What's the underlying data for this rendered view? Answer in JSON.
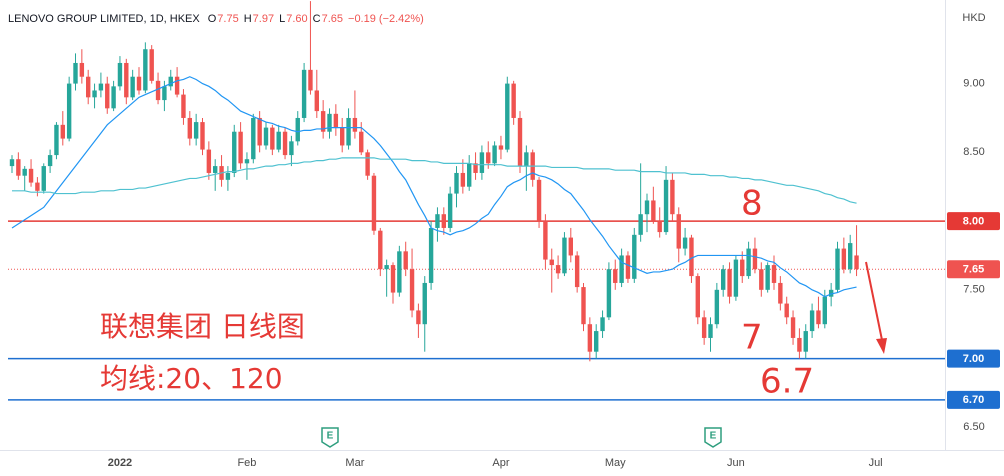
{
  "chart_data": {
    "type": "candlestick",
    "title": "LENOVO GROUP LIMITED, 1D, HKEX",
    "quote": [
      {
        "key": "O",
        "value": "7.75"
      },
      {
        "key": "H",
        "value": "7.97"
      },
      {
        "key": "L",
        "value": "7.60"
      },
      {
        "key": "C",
        "value": "7.65"
      }
    ],
    "change": "−0.19 (−2.42%)",
    "y_axis_label": "HKD",
    "up_color": "#26a69a",
    "down_color": "#ef5350",
    "grid": false,
    "ylim": [
      6.335,
      9.608
    ],
    "yticks": [
      {
        "value": 9,
        "label": "9.00"
      },
      {
        "value": 8.5,
        "label": "8.50"
      },
      {
        "value": 8,
        "label": "8.00"
      },
      {
        "value": 7.5,
        "label": "7.50"
      },
      {
        "value": 7,
        "label": "7.00"
      },
      {
        "value": 6.5,
        "label": "6.50"
      }
    ],
    "categories": [
      null,
      null,
      null,
      null,
      null,
      null,
      null,
      null,
      null,
      null,
      null,
      null,
      null,
      null,
      null,
      null,
      null,
      "2022",
      null,
      null,
      null,
      null,
      null,
      null,
      null,
      null,
      null,
      null,
      null,
      null,
      null,
      null,
      null,
      null,
      null,
      null,
      null,
      "Feb",
      null,
      null,
      null,
      null,
      null,
      null,
      null,
      null,
      null,
      null,
      null,
      null,
      null,
      null,
      null,
      null,
      "Mar",
      null,
      null,
      null,
      null,
      null,
      null,
      null,
      null,
      null,
      null,
      null,
      null,
      null,
      null,
      null,
      null,
      null,
      null,
      null,
      null,
      null,
      null,
      "Apr",
      null,
      null,
      null,
      null,
      null,
      null,
      null,
      null,
      null,
      null,
      null,
      null,
      null,
      null,
      null,
      null,
      null,
      "May",
      null,
      null,
      null,
      null,
      null,
      null,
      null,
      null,
      null,
      null,
      null,
      null,
      null,
      null,
      null,
      null,
      null,
      null,
      "Jun",
      null,
      null,
      null,
      null,
      null,
      null,
      null,
      null,
      null,
      null,
      null,
      null,
      null,
      null,
      null,
      null,
      null,
      null,
      null,
      null,
      null,
      "Jul"
    ],
    "open": [
      8.4,
      8.45,
      8.33,
      8.38,
      8.28,
      8.22,
      8.4,
      8.48,
      8.7,
      8.6,
      9.0,
      9.15,
      9.05,
      8.9,
      8.95,
      9.0,
      8.82,
      8.98,
      9.15,
      8.9,
      9.05,
      8.95,
      9.25,
      9.02,
      8.88,
      8.98,
      9.05,
      8.92,
      8.75,
      8.6,
      8.72,
      8.52,
      8.35,
      8.4,
      8.3,
      8.35,
      8.65,
      8.42,
      8.45,
      8.75,
      8.55,
      8.68,
      8.52,
      8.65,
      8.48,
      8.58,
      8.75,
      9.1,
      8.95,
      8.8,
      8.65,
      8.78,
      8.68,
      8.55,
      8.75,
      8.65,
      8.5,
      8.33,
      7.93,
      7.65,
      7.68,
      7.48,
      7.78,
      7.65,
      7.35,
      7.25,
      7.55,
      7.95,
      8.05,
      7.95,
      8.2,
      8.35,
      8.25,
      8.42,
      8.35,
      8.5,
      8.42,
      8.55,
      8.52,
      9.0,
      8.75,
      8.4,
      8.5,
      8.3,
      8.0,
      7.72,
      7.68,
      7.62,
      7.88,
      7.75,
      7.52,
      7.25,
      7.05,
      7.2,
      7.3,
      7.65,
      7.55,
      7.75,
      7.58,
      7.9,
      8.05,
      8.15,
      8.0,
      7.92,
      8.3,
      8.05,
      7.8,
      7.88,
      7.6,
      7.3,
      7.15,
      7.25,
      7.5,
      7.65,
      7.45,
      7.72,
      7.6,
      7.8,
      7.65,
      7.5,
      7.68,
      7.55,
      7.4,
      7.3,
      7.15,
      7.05,
      7.2,
      7.35,
      7.25,
      7.45,
      7.5,
      7.8,
      7.65,
      7.75,
      null,
      null,
      null
    ],
    "high": [
      8.48,
      8.5,
      8.4,
      8.45,
      8.32,
      8.42,
      8.52,
      8.72,
      8.8,
      9.05,
      9.22,
      9.25,
      9.1,
      9.0,
      9.08,
      9.05,
      9.02,
      9.2,
      9.18,
      9.1,
      9.12,
      9.3,
      9.28,
      9.08,
      9.02,
      9.1,
      9.12,
      8.96,
      8.8,
      8.78,
      8.75,
      8.58,
      8.45,
      8.48,
      8.4,
      8.7,
      8.72,
      8.5,
      8.78,
      8.8,
      8.72,
      8.7,
      8.7,
      8.68,
      8.62,
      8.8,
      9.15,
      9.6,
      9.1,
      8.88,
      8.82,
      8.85,
      8.75,
      8.82,
      8.95,
      8.72,
      8.52,
      8.35,
      7.95,
      7.72,
      7.7,
      7.82,
      7.85,
      7.8,
      7.4,
      7.6,
      8.0,
      8.1,
      8.1,
      8.25,
      8.4,
      8.45,
      8.48,
      8.5,
      8.55,
      8.58,
      8.58,
      8.62,
      9.05,
      9.02,
      8.8,
      8.55,
      8.52,
      8.32,
      8.05,
      7.8,
      7.75,
      7.92,
      7.95,
      7.78,
      7.55,
      7.3,
      7.25,
      7.35,
      7.7,
      7.72,
      7.8,
      7.78,
      7.95,
      8.42,
      8.2,
      8.25,
      8.1,
      8.4,
      8.35,
      8.1,
      7.95,
      7.9,
      7.62,
      7.35,
      7.3,
      7.55,
      7.68,
      7.7,
      7.75,
      7.78,
      7.85,
      7.88,
      7.7,
      7.7,
      7.75,
      7.6,
      7.45,
      7.35,
      7.22,
      7.25,
      7.4,
      7.45,
      7.5,
      7.55,
      7.85,
      7.88,
      7.9,
      7.97,
      null,
      null,
      null
    ],
    "low": [
      8.35,
      8.3,
      8.22,
      8.25,
      8.18,
      8.2,
      8.35,
      8.45,
      8.55,
      8.58,
      8.95,
      9.0,
      8.85,
      8.82,
      8.9,
      8.78,
      8.8,
      8.95,
      8.85,
      8.88,
      8.92,
      8.93,
      9.0,
      8.85,
      8.8,
      8.95,
      8.9,
      8.7,
      8.55,
      8.55,
      8.48,
      8.3,
      8.22,
      8.25,
      8.22,
      8.32,
      8.38,
      8.3,
      8.42,
      8.5,
      8.52,
      8.48,
      8.5,
      8.45,
      8.4,
      8.55,
      8.72,
      8.92,
      8.75,
      8.6,
      8.6,
      8.62,
      8.5,
      8.52,
      8.6,
      8.48,
      8.3,
      7.9,
      7.6,
      7.45,
      7.4,
      7.45,
      7.6,
      7.3,
      7.15,
      7.05,
      7.5,
      7.85,
      7.9,
      7.92,
      8.1,
      8.2,
      8.22,
      8.3,
      8.3,
      8.38,
      8.4,
      8.45,
      8.5,
      8.7,
      8.35,
      8.22,
      8.25,
      7.95,
      7.65,
      7.48,
      7.58,
      7.6,
      7.7,
      7.48,
      7.2,
      6.98,
      7.0,
      7.15,
      7.28,
      7.5,
      7.52,
      7.55,
      7.55,
      7.85,
      7.92,
      7.98,
      7.88,
      7.9,
      8.0,
      7.7,
      7.75,
      7.55,
      7.25,
      7.1,
      7.05,
      7.22,
      7.45,
      7.4,
      7.42,
      7.55,
      7.58,
      7.62,
      7.45,
      7.48,
      7.5,
      7.35,
      7.25,
      7.1,
      7.0,
      7.0,
      7.15,
      7.22,
      7.22,
      7.38,
      7.48,
      7.62,
      7.62,
      7.6,
      null,
      null,
      null
    ],
    "close": [
      8.45,
      8.33,
      8.38,
      8.28,
      8.22,
      8.4,
      8.48,
      8.7,
      8.6,
      9.0,
      9.15,
      9.05,
      8.9,
      8.95,
      9.0,
      8.82,
      8.98,
      9.15,
      8.9,
      9.05,
      8.95,
      9.25,
      9.02,
      8.88,
      8.98,
      9.05,
      8.92,
      8.75,
      8.6,
      8.72,
      8.52,
      8.35,
      8.4,
      8.3,
      8.35,
      8.65,
      8.42,
      8.45,
      8.75,
      8.55,
      8.68,
      8.52,
      8.65,
      8.48,
      8.58,
      8.75,
      9.1,
      8.95,
      8.8,
      8.65,
      8.78,
      8.68,
      8.55,
      8.75,
      8.65,
      8.5,
      8.33,
      7.93,
      7.65,
      7.68,
      7.48,
      7.78,
      7.65,
      7.35,
      7.25,
      7.55,
      7.95,
      8.05,
      7.95,
      8.2,
      8.35,
      8.25,
      8.42,
      8.35,
      8.5,
      8.42,
      8.55,
      8.52,
      9.0,
      8.75,
      8.4,
      8.5,
      8.3,
      8.0,
      7.72,
      7.68,
      7.62,
      7.88,
      7.75,
      7.52,
      7.25,
      7.05,
      7.2,
      7.3,
      7.65,
      7.55,
      7.75,
      7.58,
      7.9,
      8.05,
      8.15,
      8.0,
      7.92,
      8.3,
      8.05,
      7.8,
      7.88,
      7.6,
      7.3,
      7.15,
      7.25,
      7.5,
      7.65,
      7.45,
      7.72,
      7.6,
      7.8,
      7.65,
      7.5,
      7.68,
      7.55,
      7.4,
      7.3,
      7.15,
      7.05,
      7.2,
      7.35,
      7.25,
      7.45,
      7.5,
      7.8,
      7.65,
      7.84,
      7.65,
      null,
      null,
      null
    ],
    "overlays": [
      {
        "color": "#2196f3",
        "values": [
          7.95,
          7.98,
          8.01,
          8.04,
          8.07,
          8.1,
          8.16,
          8.22,
          8.28,
          8.34,
          8.4,
          8.46,
          8.52,
          8.58,
          8.64,
          8.7,
          8.74,
          8.78,
          8.82,
          8.86,
          8.9,
          8.92,
          8.94,
          8.96,
          8.98,
          9.0,
          9.02,
          9.03,
          9.05,
          9.03,
          9.0,
          8.98,
          8.95,
          8.91,
          8.88,
          8.84,
          8.8,
          8.78,
          8.76,
          8.74,
          8.72,
          8.71,
          8.69,
          8.68,
          8.66,
          8.65,
          8.66,
          8.66,
          8.67,
          8.67,
          8.68,
          8.68,
          8.68,
          8.68,
          8.68,
          8.68,
          8.64,
          8.6,
          8.55,
          8.49,
          8.43,
          8.36,
          8.3,
          8.21,
          8.12,
          8.04,
          7.95,
          7.93,
          7.92,
          7.9,
          7.92,
          7.93,
          7.95,
          7.98,
          8.02,
          8.05,
          8.12,
          8.18,
          8.25,
          8.28,
          8.3,
          8.33,
          8.35,
          8.33,
          8.32,
          8.3,
          8.27,
          8.23,
          8.2,
          8.14,
          8.08,
          8.01,
          7.95,
          7.89,
          7.82,
          7.76,
          7.7,
          7.68,
          7.66,
          7.64,
          7.62,
          7.63,
          7.63,
          7.64,
          7.65,
          7.68,
          7.7,
          7.73,
          7.75,
          7.75,
          7.75,
          7.75,
          7.75,
          7.75,
          7.75,
          7.75,
          7.75,
          7.74,
          7.73,
          7.71,
          7.7,
          7.66,
          7.63,
          7.59,
          7.55,
          7.53,
          7.5,
          7.48,
          7.45,
          7.47,
          7.48,
          7.5,
          7.51,
          7.52,
          null,
          null,
          null
        ]
      },
      {
        "color": "#4fc1d0",
        "values": [
          8.22,
          8.22,
          8.22,
          8.21,
          8.21,
          8.21,
          8.21,
          8.2,
          8.2,
          8.2,
          8.2,
          8.21,
          8.21,
          8.21,
          8.22,
          8.22,
          8.22,
          8.23,
          8.23,
          8.23,
          8.24,
          8.24,
          8.25,
          8.26,
          8.27,
          8.28,
          8.29,
          8.3,
          8.31,
          8.31,
          8.32,
          8.33,
          8.34,
          8.35,
          8.36,
          8.36,
          8.37,
          8.38,
          8.38,
          8.39,
          8.4,
          8.4,
          8.41,
          8.41,
          8.42,
          8.42,
          8.43,
          8.43,
          8.44,
          8.44,
          8.45,
          8.45,
          8.46,
          8.46,
          8.46,
          8.46,
          8.46,
          8.46,
          8.45,
          8.45,
          8.45,
          8.45,
          8.45,
          8.44,
          8.44,
          8.44,
          8.43,
          8.43,
          8.42,
          8.42,
          8.42,
          8.42,
          8.42,
          8.41,
          8.41,
          8.41,
          8.41,
          8.41,
          8.4,
          8.4,
          8.4,
          8.4,
          8.4,
          8.4,
          8.4,
          8.39,
          8.39,
          8.39,
          8.39,
          8.39,
          8.38,
          8.38,
          8.38,
          8.38,
          8.38,
          8.37,
          8.37,
          8.37,
          8.37,
          8.36,
          8.36,
          8.36,
          8.36,
          8.35,
          8.35,
          8.35,
          8.35,
          8.34,
          8.34,
          8.34,
          8.33,
          8.33,
          8.33,
          8.32,
          8.32,
          8.31,
          8.31,
          8.3,
          8.3,
          8.29,
          8.28,
          8.27,
          8.26,
          8.26,
          8.25,
          8.24,
          8.23,
          8.22,
          8.2,
          8.19,
          8.17,
          8.16,
          8.14,
          8.13,
          null,
          null,
          null
        ]
      }
    ],
    "levels": [
      {
        "value": 8,
        "label": "8.00",
        "color": "#e53935",
        "style": "solid"
      },
      {
        "value": 7,
        "label": "7.00",
        "color": "#1e6fd0",
        "style": "solid"
      },
      {
        "value": 6.7,
        "label": "6.70",
        "color": "#1e6fd0",
        "style": "solid"
      },
      {
        "value": 7.65,
        "label": "7.65",
        "color": "#ef5350",
        "style": "dotted"
      }
    ],
    "annotations": [
      "8",
      "7",
      "6.7",
      "联想集团 日线图",
      "均线:20、120"
    ],
    "event_marker": "E"
  }
}
